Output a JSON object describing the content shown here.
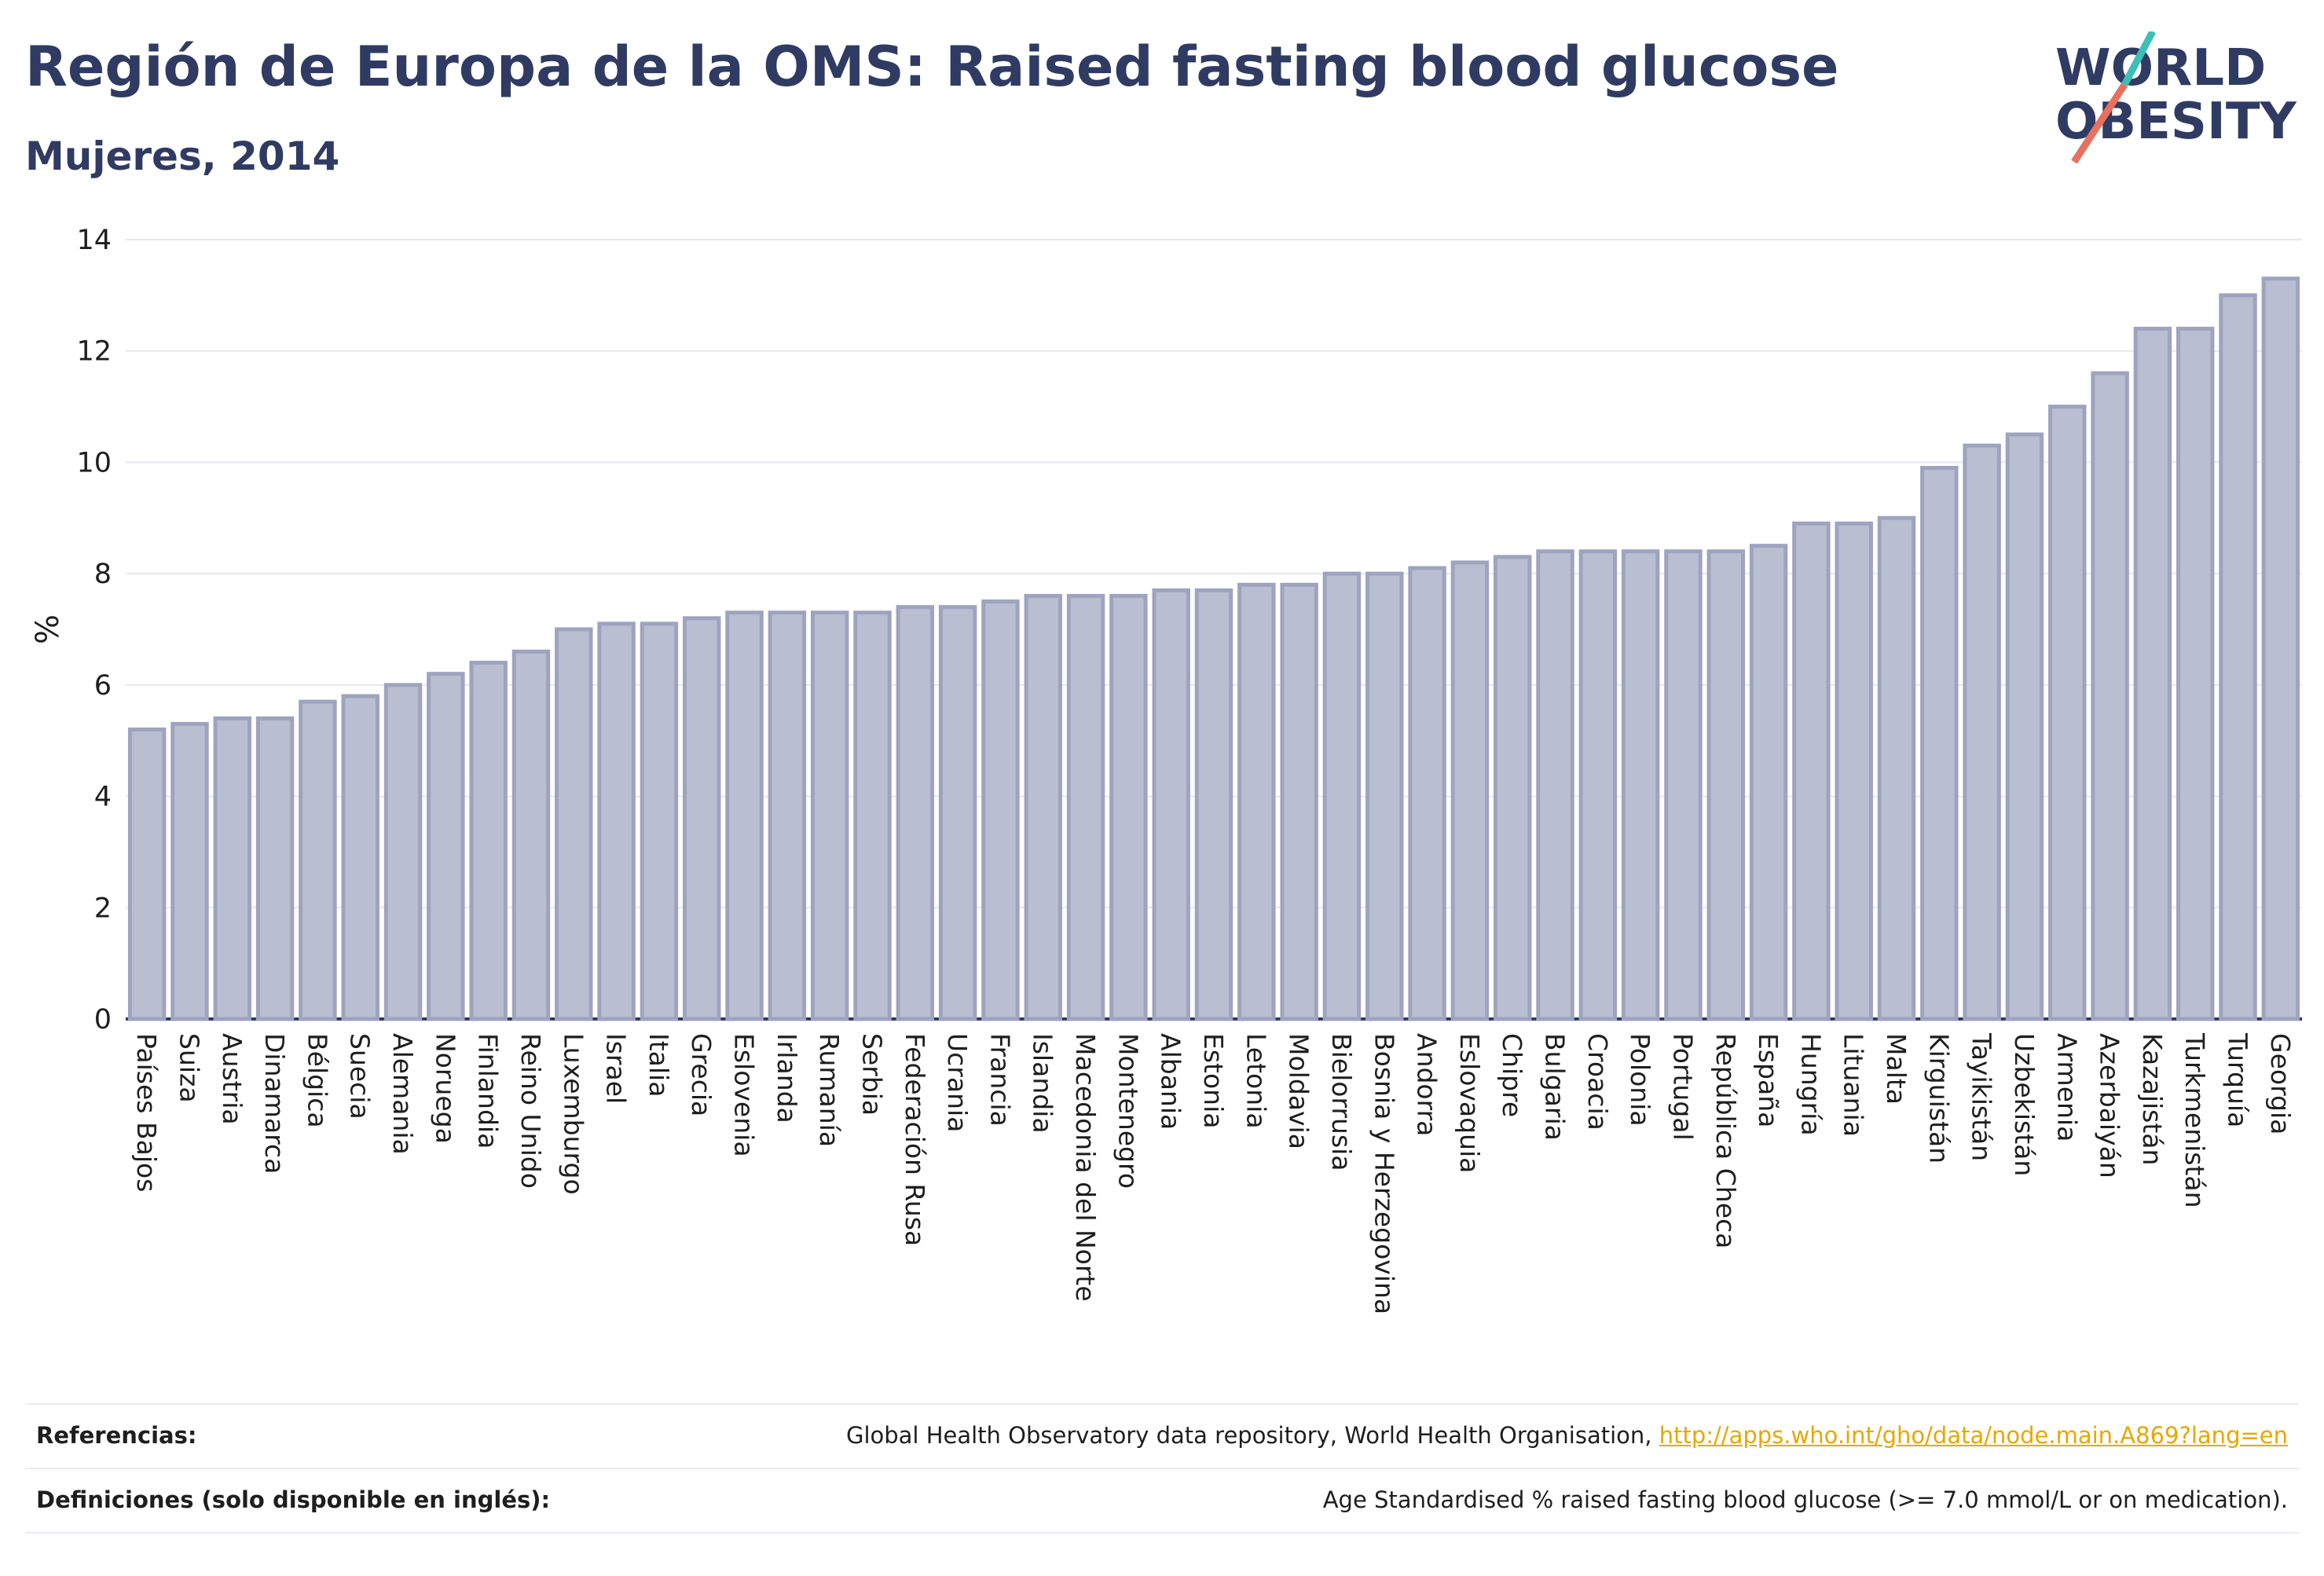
{
  "header": {
    "title": "Región de Europa de la OMS: Raised fasting blood glucose",
    "subtitle": "Mujeres, 2014",
    "logo_line1": "WORLD",
    "logo_line2": "OBESITY"
  },
  "colors": {
    "bar_fill": "#b9bed0",
    "bar_stroke": "#9ea4bf",
    "title": "#2f3b62",
    "logo_teal": "#3bbfb6",
    "logo_coral": "#e8705e",
    "link": "#e8a700"
  },
  "chart_data": {
    "type": "bar",
    "ylabel": "%",
    "ylim": [
      0,
      14
    ],
    "yticks": [
      0,
      2,
      4,
      6,
      8,
      10,
      12,
      14
    ],
    "grid": true,
    "categories": [
      "Países Bajos",
      "Suiza",
      "Austria",
      "Dinamarca",
      "Bélgica",
      "Suecia",
      "Alemania",
      "Noruega",
      "Finlandia",
      "Reino Unido",
      "Luxemburgo",
      "Israel",
      "Italia",
      "Grecia",
      "Eslovenia",
      "Irlanda",
      "Rumanía",
      "Serbia",
      "Federación Rusa",
      "Ucrania",
      "Francia",
      "Islandia",
      "Macedonia del Norte",
      "Montenegro",
      "Albania",
      "Estonia",
      "Letonia",
      "Moldavia",
      "Bielorrusia",
      "Bosnia y Herzegovina",
      "Andorra",
      "Eslovaquia",
      "Chipre",
      "Bulgaria",
      "Croacia",
      "Polonia",
      "Portugal",
      "República Checa",
      "España",
      "Hungría",
      "Lituania",
      "Malta",
      "Kirguistán",
      "Tayikistán",
      "Uzbekistán",
      "Armenia",
      "Azerbaiyán",
      "Kazajistán",
      "Turkmenistán",
      "Turquía",
      "Georgia"
    ],
    "values": [
      5.2,
      5.3,
      5.4,
      5.4,
      5.7,
      5.8,
      6.0,
      6.2,
      6.4,
      6.6,
      7.0,
      7.1,
      7.1,
      7.2,
      7.3,
      7.3,
      7.3,
      7.3,
      7.4,
      7.4,
      7.5,
      7.6,
      7.6,
      7.6,
      7.7,
      7.7,
      7.8,
      7.8,
      8.0,
      8.0,
      8.1,
      8.2,
      8.3,
      8.4,
      8.4,
      8.4,
      8.4,
      8.4,
      8.5,
      8.9,
      8.9,
      9.0,
      9.9,
      10.3,
      10.5,
      11.0,
      11.6,
      12.4,
      12.4,
      13.0,
      13.3
    ]
  },
  "footer": {
    "references_label": "Referencias:",
    "references_text": "Global Health Observatory data repository, World Health Organisation, ",
    "references_link": "http://apps.who.int/gho/data/node.main.A869?lang=en",
    "definitions_label": "Definiciones (solo disponible en inglés):",
    "definitions_text": "Age Standardised % raised fasting blood glucose (>= 7.0 mmol/L or on medication)."
  }
}
